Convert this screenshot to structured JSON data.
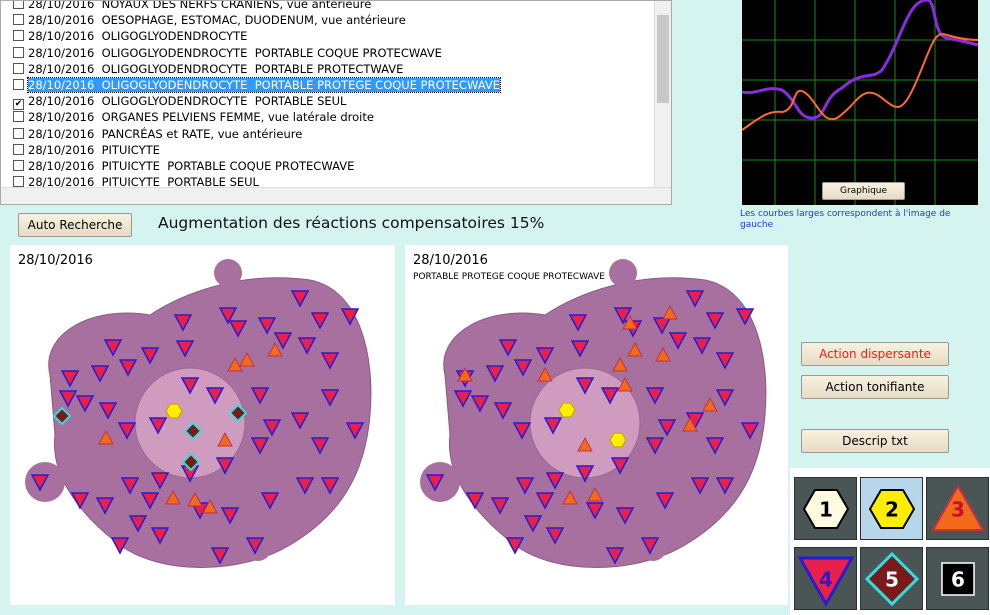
{
  "list": {
    "items": [
      {
        "text": "28/10/2016  NOYAUX DES NERFS CRANIENS, vue antérieure"
      },
      {
        "text": "28/10/2016  OESOPHAGE, ESTOMAC, DUODENUM, vue antérieure"
      },
      {
        "text": "28/10/2016  OLIGOGLYODENDROCYTE"
      },
      {
        "text": "28/10/2016  OLIGOGLYODENDROCYTE  PORTABLE COQUE PROTECWAVE"
      },
      {
        "text": "28/10/2016  OLIGOGLYODENDROCYTE  PORTABLE PROTECTWAVE"
      },
      {
        "text": "28/10/2016  OLIGOGLYODENDROCYTE  PORTABLE PROTEGE COQUE PROTECWAVE",
        "selected": true
      },
      {
        "text": "28/10/2016  OLIGOGLYODENDROCYTE  PORTABLE SEUL",
        "checked": true
      },
      {
        "text": "28/10/2016  ORGANES PELVIENS FEMME, vue latérale droite"
      },
      {
        "text": "28/10/2016  PANCRÉAS et RATE, vue antérieure"
      },
      {
        "text": "28/10/2016  PITUICYTE"
      },
      {
        "text": "28/10/2016  PITUICYTE  PORTABLE COQUE PROTECWAVE"
      },
      {
        "text": "28/10/2016  PITUICYTE  PORTABLE SEUL"
      }
    ]
  },
  "graph": {
    "button": "Graphique",
    "note": "Les courbes larges correspondent à l'image de gauche"
  },
  "toolbar": {
    "auto_button": "Auto Recherche",
    "message": "Augmentation des réactions compensatoires 15%"
  },
  "panels": [
    {
      "date": "28/10/2016"
    },
    {
      "date": "28/10/2016",
      "subtitle": "PORTABLE PROTEGE COQUE PROTECWAVE"
    }
  ],
  "actions": [
    "Action dispersante",
    "Action tonifiante",
    "Descrip txt"
  ],
  "legend": [
    1,
    2,
    3,
    4,
    5,
    6
  ]
}
